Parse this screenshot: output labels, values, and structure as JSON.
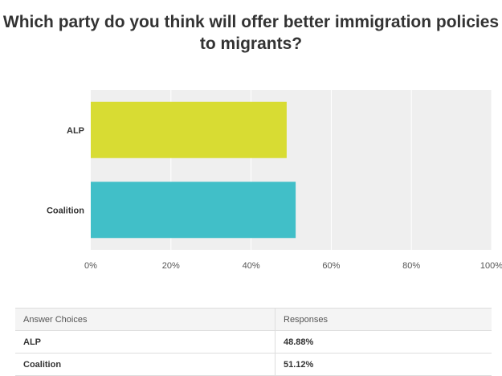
{
  "chart_data": {
    "type": "bar",
    "orientation": "horizontal",
    "title": "Which party do you think will offer better immigration policies to migrants?",
    "categories": [
      "ALP",
      "Coalition"
    ],
    "values": [
      48.88,
      51.12
    ],
    "xlim": [
      0,
      100
    ],
    "x_ticks": [
      "0%",
      "20%",
      "40%",
      "60%",
      "80%",
      "100%"
    ],
    "grid": true,
    "colors": [
      "#d8dc33",
      "#41bfc8"
    ]
  },
  "table": {
    "headers": [
      "Answer Choices",
      "Responses"
    ],
    "rows": [
      [
        "ALP",
        "48.88%"
      ],
      [
        "Coalition",
        "51.12%"
      ]
    ]
  }
}
